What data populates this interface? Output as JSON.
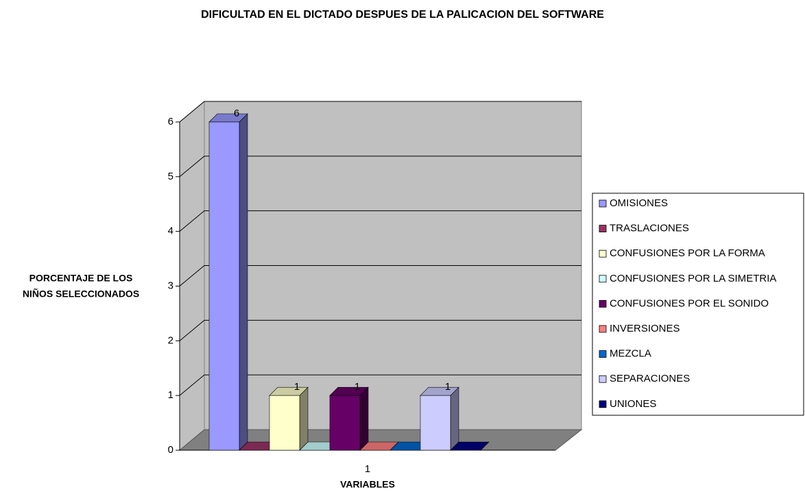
{
  "chart_data": {
    "type": "bar3d",
    "title": "DIFICULTAD EN EL DICTADO DESPUES DE LA PALICACION DEL SOFTWARE",
    "x_label": "VARIABLES",
    "y_label": [
      "PORCENTAJE DE LOS",
      "NIÑOS SELECCIONADOS"
    ],
    "categories": [
      "1"
    ],
    "ylim": [
      0,
      6
    ],
    "yticks": [
      0,
      1,
      2,
      3,
      4,
      5,
      6
    ],
    "grid": true,
    "legend": "right",
    "series": [
      {
        "name": "OMISIONES",
        "color": "#9999ff",
        "values": [
          6
        ]
      },
      {
        "name": "TRASLACIONES",
        "color": "#993366",
        "values": [
          0
        ]
      },
      {
        "name": "CONFUSIONES POR LA FORMA",
        "color": "#ffffcc",
        "values": [
          1
        ]
      },
      {
        "name": "CONFUSIONES POR LA SIMETRIA",
        "color": "#ccffff",
        "values": [
          0
        ]
      },
      {
        "name": "CONFUSIONES POR EL SONIDO",
        "color": "#660066",
        "values": [
          1
        ]
      },
      {
        "name": "INVERSIONES",
        "color": "#ff8080",
        "values": [
          0
        ]
      },
      {
        "name": "MEZCLA",
        "color": "#0066cc",
        "values": [
          0
        ]
      },
      {
        "name": "SEPARACIONES",
        "color": "#ccccff",
        "values": [
          1
        ]
      },
      {
        "name": "UNIONES",
        "color": "#000080",
        "values": [
          0
        ]
      }
    ]
  }
}
